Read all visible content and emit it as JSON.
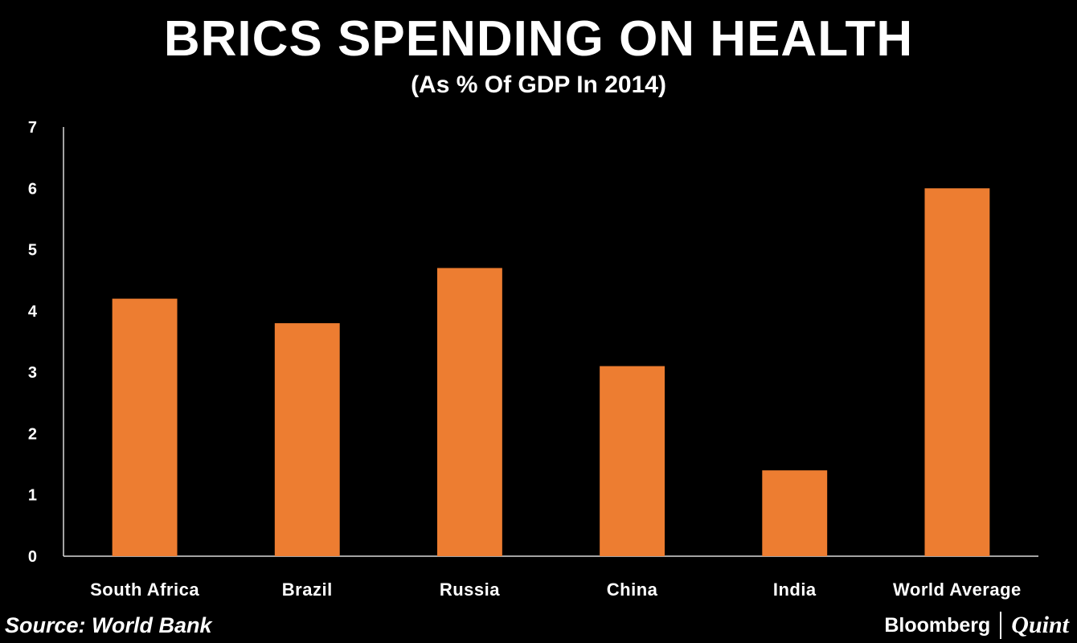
{
  "chart_data": {
    "type": "bar",
    "title": "BRICS SPENDING ON HEALTH",
    "subtitle": "(As % Of GDP In 2014)",
    "categories": [
      "South Africa",
      "Brazil",
      "Russia",
      "China",
      "India",
      "World Average"
    ],
    "values": [
      4.2,
      3.8,
      4.7,
      3.1,
      1.4,
      6.0
    ],
    "ylim": [
      0,
      7
    ],
    "yticks": [
      "0",
      "1",
      "2",
      "3",
      "4",
      "5",
      "6",
      "7"
    ],
    "xlabel": "",
    "ylabel": "",
    "grid": false,
    "bar_color": "#ED7D31"
  },
  "footer": {
    "source": "Source: World Bank",
    "brand_primary": "Bloomberg",
    "brand_secondary": "Quint"
  }
}
